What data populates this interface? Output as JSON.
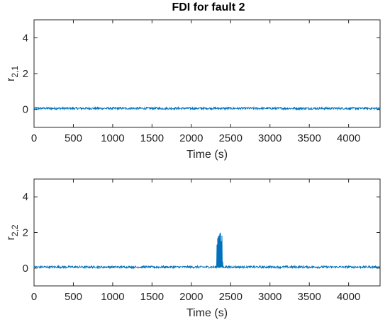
{
  "chart_data": [
    {
      "type": "line",
      "title": "FDI for fault 2",
      "xlabel": "Time (s)",
      "ylabel_main": "r",
      "ylabel_sub": "2,1",
      "xlim": [
        0,
        4400
      ],
      "ylim": [
        -1,
        5
      ],
      "x_ticks": [
        0,
        500,
        1000,
        1500,
        2000,
        2500,
        3000,
        3500,
        4000
      ],
      "y_ticks": [
        0,
        2,
        4
      ],
      "grid": false,
      "series": [
        {
          "baseline": 0.05,
          "noise_band": [
            0.0,
            0.12
          ],
          "x": [
            0,
            4400
          ],
          "y": [
            0.05,
            0.05
          ]
        }
      ]
    },
    {
      "type": "line",
      "title": "",
      "xlabel": "Time (s)",
      "ylabel_main": "r",
      "ylabel_sub": "2,2",
      "xlim": [
        0,
        4400
      ],
      "ylim": [
        -1,
        5
      ],
      "x_ticks": [
        0,
        500,
        1000,
        1500,
        2000,
        2500,
        3000,
        3500,
        4000
      ],
      "y_ticks": [
        0,
        2,
        4
      ],
      "grid": false,
      "series": [
        {
          "baseline": 0.05,
          "noise_band": [
            0.0,
            0.12
          ],
          "x": [
            0,
            2320,
            2330,
            2340,
            2350,
            2360,
            2370,
            2380,
            2390,
            2400,
            4400
          ],
          "y": [
            0.05,
            0.05,
            2.5,
            1.9,
            2.4,
            2.0,
            2.3,
            1.8,
            2.2,
            0.05,
            0.05
          ],
          "fault_window": [
            2320,
            2400
          ],
          "fault_peak": 2.5
        }
      ]
    }
  ],
  "colors": {
    "line": "#0072BD",
    "axis": "#262626"
  }
}
